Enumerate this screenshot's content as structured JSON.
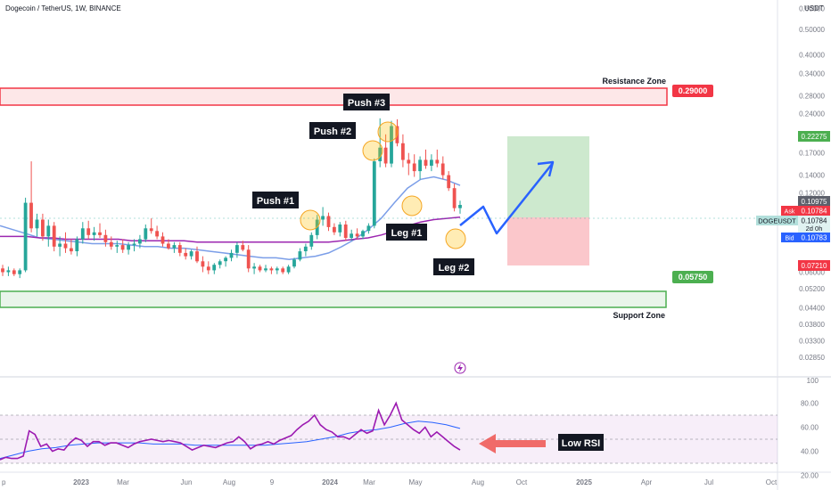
{
  "header": {
    "symbol_title": "Dogecoin / TetherUS, 1W, BINANCE",
    "currency": "USDT"
  },
  "axes": {
    "price_ticks": [
      "0.60000",
      "0.50000",
      "0.40000",
      "0.34000",
      "0.28000",
      "0.24000",
      "0.20000",
      "0.17000",
      "0.14000",
      "0.12000",
      "0.08500",
      "0.06000",
      "0.05200",
      "0.04400",
      "0.03800",
      "0.03300",
      "0.02850"
    ],
    "time_ticks": [
      "p",
      "2023",
      "Mar",
      "Jun",
      "Aug",
      "9",
      "2024",
      "Mar",
      "May",
      "Aug",
      "Oct",
      "2025",
      "Apr",
      "Jul",
      "Oct"
    ],
    "rsi_ticks": [
      "100",
      "80.00",
      "60.00",
      "40.00",
      "20.00"
    ]
  },
  "zones": {
    "resistance": {
      "label": "Resistance Zone",
      "price": "0.29000"
    },
    "support": {
      "label": "Support Zone",
      "price": "0.05750"
    }
  },
  "annotations": {
    "push1": "Push #1",
    "push2": "Push #2",
    "push3": "Push #3",
    "leg1": "Leg #1",
    "leg2": "Leg #2",
    "low_rsi": "Low RSI"
  },
  "price_badges": {
    "target": "0.22275",
    "high": "0.10975",
    "ask_label": "Ask",
    "ask": "0.10784",
    "symbol": "DOGEUSDT",
    "last": "0.10784",
    "countdown": "2d 0h",
    "bid_label": "Bid",
    "bid": "0.10783",
    "stop": "0.07210"
  },
  "colors": {
    "up": "#26a69a",
    "down": "#ef5350",
    "resistance": "#f23645",
    "support": "#4caf50",
    "ma_fast": "#7b9ee8",
    "ma_slow": "#9c27b0",
    "rsi": "#9c1ab1",
    "rsi_ma": "#2962ff",
    "projection": "#2962ff"
  },
  "chart_data": {
    "type": "candlestick",
    "title": "Dogecoin / TetherUS, 1W, BINANCE",
    "y_scale": "log",
    "ylim": [
      0.0285,
      0.6
    ],
    "candles_ohlc": [
      [
        0.062,
        0.064,
        0.058,
        0.06
      ],
      [
        0.06,
        0.063,
        0.058,
        0.061
      ],
      [
        0.061,
        0.062,
        0.058,
        0.059
      ],
      [
        0.059,
        0.062,
        0.057,
        0.061
      ],
      [
        0.061,
        0.115,
        0.06,
        0.11
      ],
      [
        0.11,
        0.158,
        0.085,
        0.088
      ],
      [
        0.088,
        0.1,
        0.082,
        0.095
      ],
      [
        0.095,
        0.1,
        0.079,
        0.082
      ],
      [
        0.082,
        0.095,
        0.075,
        0.09
      ],
      [
        0.09,
        0.093,
        0.072,
        0.075
      ],
      [
        0.075,
        0.082,
        0.069,
        0.077
      ],
      [
        0.077,
        0.085,
        0.071,
        0.074
      ],
      [
        0.074,
        0.08,
        0.07,
        0.072
      ],
      [
        0.072,
        0.082,
        0.069,
        0.08
      ],
      [
        0.08,
        0.093,
        0.077,
        0.088
      ],
      [
        0.088,
        0.094,
        0.08,
        0.083
      ],
      [
        0.083,
        0.089,
        0.079,
        0.085
      ],
      [
        0.085,
        0.092,
        0.081,
        0.083
      ],
      [
        0.083,
        0.087,
        0.075,
        0.078
      ],
      [
        0.078,
        0.082,
        0.073,
        0.075
      ],
      [
        0.075,
        0.079,
        0.071,
        0.076
      ],
      [
        0.076,
        0.08,
        0.071,
        0.073
      ],
      [
        0.073,
        0.078,
        0.07,
        0.076
      ],
      [
        0.076,
        0.08,
        0.072,
        0.077
      ],
      [
        0.077,
        0.083,
        0.074,
        0.08
      ],
      [
        0.08,
        0.091,
        0.078,
        0.088
      ],
      [
        0.088,
        0.096,
        0.084,
        0.086
      ],
      [
        0.086,
        0.09,
        0.08,
        0.082
      ],
      [
        0.082,
        0.085,
        0.075,
        0.077
      ],
      [
        0.077,
        0.08,
        0.073,
        0.074
      ],
      [
        0.074,
        0.078,
        0.071,
        0.076
      ],
      [
        0.076,
        0.078,
        0.069,
        0.071
      ],
      [
        0.071,
        0.074,
        0.067,
        0.069
      ],
      [
        0.069,
        0.073,
        0.067,
        0.072
      ],
      [
        0.072,
        0.075,
        0.065,
        0.066
      ],
      [
        0.066,
        0.069,
        0.06,
        0.063
      ],
      [
        0.063,
        0.066,
        0.059,
        0.061
      ],
      [
        0.061,
        0.065,
        0.059,
        0.064
      ],
      [
        0.064,
        0.067,
        0.062,
        0.066
      ],
      [
        0.066,
        0.069,
        0.063,
        0.068
      ],
      [
        0.068,
        0.073,
        0.066,
        0.071
      ],
      [
        0.071,
        0.078,
        0.068,
        0.076
      ],
      [
        0.076,
        0.079,
        0.072,
        0.073
      ],
      [
        0.073,
        0.076,
        0.06,
        0.062
      ],
      [
        0.062,
        0.065,
        0.059,
        0.063
      ],
      [
        0.063,
        0.064,
        0.06,
        0.061
      ],
      [
        0.061,
        0.064,
        0.06,
        0.062
      ],
      [
        0.062,
        0.063,
        0.059,
        0.061
      ],
      [
        0.061,
        0.063,
        0.059,
        0.062
      ],
      [
        0.062,
        0.063,
        0.059,
        0.06
      ],
      [
        0.06,
        0.064,
        0.059,
        0.063
      ],
      [
        0.063,
        0.068,
        0.062,
        0.067
      ],
      [
        0.067,
        0.074,
        0.066,
        0.072
      ],
      [
        0.072,
        0.077,
        0.069,
        0.075
      ],
      [
        0.075,
        0.085,
        0.073,
        0.083
      ],
      [
        0.083,
        0.099,
        0.08,
        0.095
      ],
      [
        0.095,
        0.106,
        0.09,
        0.098
      ],
      [
        0.098,
        0.101,
        0.086,
        0.089
      ],
      [
        0.089,
        0.092,
        0.083,
        0.085
      ],
      [
        0.085,
        0.093,
        0.082,
        0.091
      ],
      [
        0.091,
        0.094,
        0.079,
        0.081
      ],
      [
        0.081,
        0.087,
        0.079,
        0.084
      ],
      [
        0.084,
        0.088,
        0.08,
        0.082
      ],
      [
        0.082,
        0.087,
        0.08,
        0.086
      ],
      [
        0.086,
        0.092,
        0.084,
        0.09
      ],
      [
        0.09,
        0.162,
        0.088,
        0.158
      ],
      [
        0.158,
        0.23,
        0.15,
        0.178
      ],
      [
        0.178,
        0.2,
        0.15,
        0.155
      ],
      [
        0.155,
        0.225,
        0.15,
        0.215
      ],
      [
        0.215,
        0.228,
        0.18,
        0.185
      ],
      [
        0.185,
        0.2,
        0.15,
        0.16
      ],
      [
        0.16,
        0.17,
        0.14,
        0.155
      ],
      [
        0.155,
        0.168,
        0.138,
        0.145
      ],
      [
        0.145,
        0.165,
        0.135,
        0.16
      ],
      [
        0.16,
        0.175,
        0.148,
        0.152
      ],
      [
        0.152,
        0.168,
        0.145,
        0.16
      ],
      [
        0.16,
        0.175,
        0.15,
        0.155
      ],
      [
        0.155,
        0.165,
        0.135,
        0.14
      ],
      [
        0.14,
        0.145,
        0.122,
        0.125
      ],
      [
        0.125,
        0.13,
        0.102,
        0.105
      ],
      [
        0.105,
        0.112,
        0.1,
        0.108
      ]
    ],
    "ma_fast": [
      0.09,
      0.087,
      0.084,
      0.081,
      0.08,
      0.079,
      0.078,
      0.077,
      0.077,
      0.077,
      0.076,
      0.075,
      0.075,
      0.074,
      0.074,
      0.073,
      0.072,
      0.071,
      0.07,
      0.069,
      0.068,
      0.068,
      0.067,
      0.068,
      0.069,
      0.071,
      0.075,
      0.08,
      0.087,
      0.096,
      0.11,
      0.125,
      0.135,
      0.138,
      0.134,
      0.128
    ],
    "ma_slow": [
      0.082,
      0.082,
      0.082,
      0.081,
      0.081,
      0.08,
      0.08,
      0.08,
      0.08,
      0.08,
      0.079,
      0.079,
      0.079,
      0.079,
      0.079,
      0.078,
      0.078,
      0.078,
      0.078,
      0.078,
      0.078,
      0.078,
      0.078,
      0.078,
      0.078,
      0.078,
      0.079,
      0.08,
      0.081,
      0.083,
      0.086,
      0.09,
      0.093,
      0.095,
      0.096,
      0.097
    ],
    "rsi_ylim": [
      20,
      100
    ],
    "rsi_values": [
      33,
      35,
      34,
      34,
      36,
      57,
      54,
      44,
      46,
      40,
      42,
      41,
      47,
      51,
      49,
      44,
      48,
      48,
      45,
      47,
      47,
      45,
      43,
      46,
      48,
      49,
      50,
      49,
      48,
      49,
      48,
      47,
      44,
      41,
      43,
      45,
      44,
      43,
      45,
      47,
      48,
      52,
      48,
      42,
      45,
      46,
      48,
      46,
      49,
      51,
      53,
      58,
      62,
      65,
      70,
      62,
      58,
      56,
      52,
      52,
      50,
      54,
      58,
      55,
      57,
      74,
      62,
      70,
      80,
      66,
      62,
      58,
      55,
      60,
      52,
      56,
      52,
      48,
      44,
      41
    ],
    "rsi_ma": [
      34,
      37,
      40,
      42,
      43,
      45,
      46,
      47,
      47,
      47,
      47,
      46,
      46,
      46,
      45,
      45,
      45,
      45,
      45,
      45,
      46,
      47,
      48,
      50,
      52,
      55,
      57,
      58,
      60,
      63,
      65,
      64,
      62,
      59
    ],
    "rsi_levels": [
      70,
      50,
      30
    ],
    "position": {
      "entry": 0.10784,
      "target": 0.22275,
      "stop": 0.0721
    }
  }
}
